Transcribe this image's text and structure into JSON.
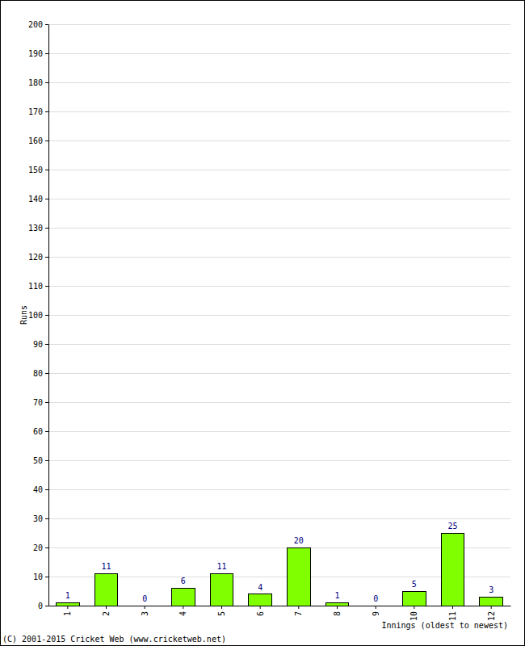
{
  "chart_data": {
    "type": "bar",
    "x_label": "Innings (oldest to newest)",
    "y_label": "Runs",
    "annotations": [
      "(C) 2001-2015 Cricket Web (www.cricketweb.net)"
    ],
    "categories": [
      "1",
      "2",
      "3",
      "4",
      "5",
      "6",
      "7",
      "8",
      "9",
      "10",
      "11",
      "12"
    ],
    "values": [
      1,
      11,
      0,
      6,
      11,
      4,
      20,
      1,
      0,
      5,
      25,
      3
    ],
    "color": "#80ff00",
    "ylim": [
      0,
      200
    ],
    "yticks": [
      0,
      10,
      20,
      30,
      40,
      50,
      60,
      70,
      80,
      90,
      100,
      110,
      120,
      130,
      140,
      150,
      160,
      170,
      180,
      190,
      200
    ],
    "grid": true,
    "data_labels": true
  }
}
